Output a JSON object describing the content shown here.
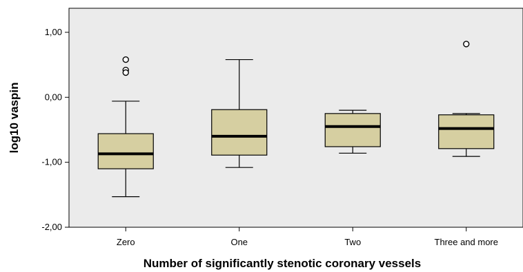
{
  "chart_data": {
    "type": "boxplot",
    "title": "",
    "xlabel": "Number of significantly stenotic coronary vessels",
    "ylabel": "log10 vaspin",
    "ylim": [
      -2.0,
      1.37
    ],
    "yticks": [
      1.0,
      0.0,
      -1.0,
      -2.0
    ],
    "ytick_labels": [
      "1,00",
      "0,00",
      "-1,00",
      "-2,00"
    ],
    "grid": false,
    "colors": {
      "plot_bg": "#ebebeb",
      "box_fill": "#d6cfa1",
      "median": "#000000",
      "stroke": "#000000"
    },
    "categories": [
      "Zero",
      "One",
      "Two",
      "Three and more"
    ],
    "boxes": [
      {
        "category": "Zero",
        "whisker_low": -1.53,
        "q1": -1.1,
        "median": -0.87,
        "q3": -0.56,
        "whisker_high": -0.06,
        "outliers": [
          0.58,
          0.42,
          0.38
        ]
      },
      {
        "category": "One",
        "whisker_low": -1.08,
        "q1": -0.89,
        "median": -0.6,
        "q3": -0.19,
        "whisker_high": 0.58,
        "outliers": []
      },
      {
        "category": "Two",
        "whisker_low": -0.86,
        "q1": -0.76,
        "median": -0.45,
        "q3": -0.25,
        "whisker_high": -0.2,
        "outliers": []
      },
      {
        "category": "Three and more",
        "whisker_low": -0.91,
        "q1": -0.79,
        "median": -0.48,
        "q3": -0.27,
        "whisker_high": -0.25,
        "outliers": [
          0.82
        ]
      }
    ]
  }
}
